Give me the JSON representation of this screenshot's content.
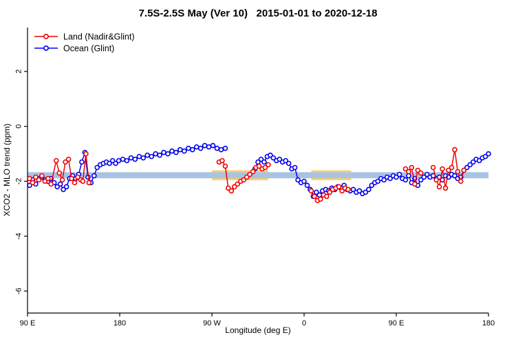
{
  "page": {
    "background": "#ffffff"
  },
  "chart_data": {
    "type": "line",
    "title": "7.5S-2.5S May (Ver 10)   2015-01-01 to 2020-12-18",
    "xlabel": "Longitude (deg E)",
    "ylabel": "XCO2 - MLO trend (ppm)",
    "xlim": [
      90,
      540
    ],
    "ylim": [
      -6.8,
      3.6
    ],
    "grid": false,
    "legend_position": "top-left",
    "x_ticks": [
      {
        "v": 90,
        "label": "90 E"
      },
      {
        "v": 180,
        "label": "180"
      },
      {
        "v": 270,
        "label": "90 W"
      },
      {
        "v": 360,
        "label": "0"
      },
      {
        "v": 450,
        "label": "90 E"
      },
      {
        "v": 540,
        "label": "180"
      }
    ],
    "y_ticks": [
      {
        "v": 2,
        "label": "2"
      },
      {
        "v": 0,
        "label": "0"
      },
      {
        "v": -2,
        "label": "-2"
      },
      {
        "v": -4,
        "label": "-4"
      },
      {
        "v": -6,
        "label": "-6"
      }
    ],
    "reference_bands": {
      "center": -1.78,
      "blue_half": 0.11,
      "blue_color": "#a9c3e2",
      "blue_from": 90,
      "blue_to": 540,
      "orange_half": 0.18,
      "orange_color": "#fbd06d",
      "orange_segments": [
        {
          "from": 270,
          "to": 325
        },
        {
          "from": 367,
          "to": 406
        }
      ]
    },
    "series": [
      {
        "name": "Land (Nadir&Glint)",
        "color": "#ee0000",
        "marker": "open-circle",
        "segments": [
          [
            [
              92,
              -1.9
            ],
            [
              95,
              -2.05
            ],
            [
              98,
              -1.85
            ],
            [
              101,
              -1.95
            ],
            [
              104,
              -1.8
            ],
            [
              107,
              -2.0
            ],
            [
              110,
              -1.9
            ],
            [
              113,
              -2.1
            ],
            [
              118,
              -1.25
            ],
            [
              121,
              -1.7
            ],
            [
              124,
              -1.95
            ],
            [
              127,
              -1.3
            ],
            [
              130,
              -1.2
            ],
            [
              133,
              -1.9
            ],
            [
              136,
              -2.05
            ],
            [
              139,
              -1.85
            ],
            [
              142,
              -1.95
            ],
            [
              144,
              -2.0
            ],
            [
              147,
              -1.0
            ],
            [
              150,
              -2.05
            ]
          ],
          [
            [
              277,
              -1.3
            ],
            [
              280,
              -1.25
            ],
            [
              283,
              -1.45
            ],
            [
              286,
              -2.25
            ],
            [
              289,
              -2.35
            ],
            [
              292,
              -2.2
            ],
            [
              295,
              -2.1
            ],
            [
              298,
              -2.0
            ],
            [
              301,
              -1.95
            ],
            [
              304,
              -1.85
            ],
            [
              307,
              -1.75
            ],
            [
              310,
              -1.65
            ],
            [
              313,
              -1.5
            ],
            [
              316,
              -1.45
            ],
            [
              319,
              -1.55
            ],
            [
              322,
              -1.5
            ],
            [
              325,
              -1.4
            ]
          ],
          [
            [
              367,
              -2.35
            ],
            [
              370,
              -2.55
            ],
            [
              373,
              -2.7
            ],
            [
              376,
              -2.65
            ],
            [
              379,
              -2.5
            ],
            [
              382,
              -2.55
            ],
            [
              385,
              -2.4
            ],
            [
              388,
              -2.3
            ],
            [
              391,
              -2.25
            ],
            [
              394,
              -2.2
            ],
            [
              397,
              -2.35
            ],
            [
              400,
              -2.25
            ],
            [
              403,
              -2.3
            ]
          ],
          [
            [
              459,
              -1.55
            ],
            [
              462,
              -1.65
            ],
            [
              465,
              -1.5
            ],
            [
              468,
              -2.1
            ],
            [
              471,
              -1.6
            ],
            [
              474,
              -1.7
            ]
          ],
          [
            [
              486,
              -1.5
            ],
            [
              489,
              -1.95
            ],
            [
              492,
              -2.2
            ],
            [
              495,
              -1.55
            ],
            [
              498,
              -2.25
            ],
            [
              501,
              -1.6
            ],
            [
              504,
              -1.5
            ],
            [
              507,
              -0.85
            ],
            [
              510,
              -1.65
            ],
            [
              513,
              -2.0
            ],
            [
              516,
              -1.6
            ]
          ]
        ]
      },
      {
        "name": "Ocean (Glint)",
        "color": "#0000ee",
        "marker": "open-circle",
        "segments": [
          [
            [
              92,
              -2.15
            ],
            [
              95,
              -1.95
            ],
            [
              98,
              -2.1
            ],
            [
              101,
              -1.9
            ],
            [
              104,
              -1.85
            ],
            [
              107,
              -1.95
            ],
            [
              110,
              -2.0
            ],
            [
              113,
              -1.9
            ],
            [
              116,
              -2.05
            ],
            [
              119,
              -2.2
            ],
            [
              122,
              -2.1
            ],
            [
              125,
              -2.3
            ],
            [
              128,
              -2.2
            ],
            [
              131,
              -1.9
            ],
            [
              134,
              -1.8
            ],
            [
              137,
              -1.9
            ],
            [
              140,
              -1.75
            ],
            [
              143,
              -1.3
            ],
            [
              146,
              -0.95
            ],
            [
              149,
              -1.85
            ],
            [
              152,
              -2.05
            ],
            [
              155,
              -1.8
            ],
            [
              158,
              -1.5
            ],
            [
              161,
              -1.4
            ],
            [
              164,
              -1.35
            ],
            [
              167,
              -1.3
            ],
            [
              170,
              -1.35
            ],
            [
              173,
              -1.25
            ],
            [
              176,
              -1.35
            ],
            [
              179,
              -1.25
            ],
            [
              183,
              -1.2
            ],
            [
              187,
              -1.25
            ],
            [
              191,
              -1.15
            ],
            [
              195,
              -1.2
            ],
            [
              199,
              -1.1
            ],
            [
              203,
              -1.15
            ],
            [
              207,
              -1.05
            ],
            [
              211,
              -1.1
            ],
            [
              215,
              -1.0
            ],
            [
              219,
              -1.05
            ],
            [
              223,
              -0.95
            ],
            [
              227,
              -1.0
            ],
            [
              231,
              -0.9
            ],
            [
              235,
              -0.95
            ],
            [
              239,
              -0.85
            ],
            [
              243,
              -0.9
            ],
            [
              247,
              -0.8
            ],
            [
              251,
              -0.85
            ],
            [
              255,
              -0.75
            ],
            [
              259,
              -0.8
            ],
            [
              263,
              -0.7
            ],
            [
              267,
              -0.75
            ],
            [
              271,
              -0.7
            ],
            [
              275,
              -0.8
            ],
            [
              279,
              -0.85
            ],
            [
              283,
              -0.8
            ]
          ],
          [
            [
              312,
              -1.55
            ],
            [
              315,
              -1.3
            ],
            [
              318,
              -1.2
            ],
            [
              321,
              -1.3
            ],
            [
              324,
              -1.1
            ],
            [
              327,
              -1.05
            ],
            [
              330,
              -1.15
            ],
            [
              333,
              -1.25
            ],
            [
              336,
              -1.2
            ],
            [
              339,
              -1.3
            ],
            [
              342,
              -1.25
            ],
            [
              345,
              -1.35
            ],
            [
              348,
              -1.55
            ],
            [
              351,
              -1.5
            ],
            [
              354,
              -1.95
            ],
            [
              357,
              -2.05
            ],
            [
              360,
              -2.0
            ],
            [
              363,
              -2.15
            ],
            [
              366,
              -2.3
            ],
            [
              369,
              -2.55
            ],
            [
              372,
              -2.4
            ],
            [
              375,
              -2.5
            ],
            [
              378,
              -2.35
            ],
            [
              381,
              -2.3
            ],
            [
              384,
              -2.35
            ],
            [
              387,
              -2.25
            ],
            [
              390,
              -2.3
            ],
            [
              393,
              -2.2
            ],
            [
              396,
              -2.25
            ],
            [
              399,
              -2.15
            ],
            [
              402,
              -2.3
            ],
            [
              405,
              -2.35
            ],
            [
              408,
              -2.3
            ],
            [
              411,
              -2.4
            ],
            [
              414,
              -2.35
            ],
            [
              417,
              -2.45
            ],
            [
              420,
              -2.4
            ],
            [
              423,
              -2.3
            ],
            [
              426,
              -2.15
            ],
            [
              429,
              -2.05
            ],
            [
              432,
              -2.0
            ],
            [
              435,
              -1.9
            ],
            [
              438,
              -1.95
            ],
            [
              441,
              -1.85
            ],
            [
              444,
              -1.9
            ],
            [
              447,
              -1.8
            ],
            [
              450,
              -1.85
            ],
            [
              453,
              -1.75
            ],
            [
              456,
              -1.9
            ],
            [
              459,
              -1.95
            ],
            [
              462,
              -1.8
            ],
            [
              465,
              -2.05
            ],
            [
              468,
              -1.9
            ],
            [
              471,
              -2.15
            ],
            [
              474,
              -1.95
            ],
            [
              477,
              -1.85
            ],
            [
              480,
              -1.75
            ],
            [
              483,
              -1.85
            ],
            [
              486,
              -1.8
            ],
            [
              489,
              -1.9
            ],
            [
              492,
              -1.85
            ],
            [
              495,
              -1.95
            ],
            [
              498,
              -1.8
            ],
            [
              501,
              -1.85
            ],
            [
              504,
              -1.75
            ],
            [
              507,
              -1.8
            ],
            [
              510,
              -1.9
            ],
            [
              513,
              -1.85
            ],
            [
              516,
              -1.6
            ],
            [
              519,
              -1.5
            ],
            [
              522,
              -1.4
            ],
            [
              525,
              -1.3
            ],
            [
              528,
              -1.2
            ],
            [
              531,
              -1.25
            ],
            [
              534,
              -1.15
            ],
            [
              537,
              -1.1
            ],
            [
              540,
              -1.0
            ]
          ]
        ]
      }
    ]
  }
}
